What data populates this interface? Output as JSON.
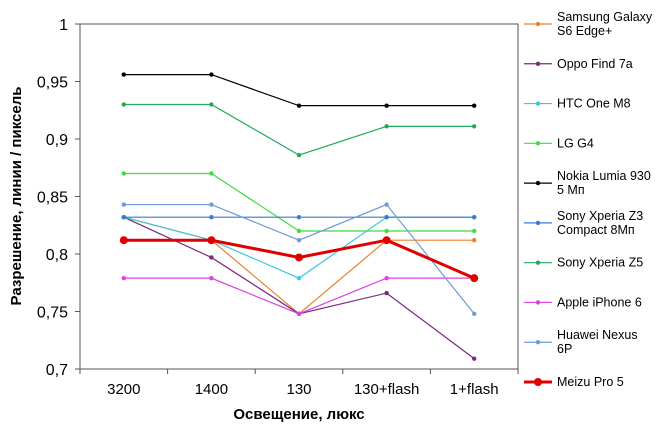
{
  "chart_data": {
    "type": "line",
    "xlabel": "Освещение,  люкс",
    "ylabel": "Разрешение,  линии / пиксель",
    "ylim": [
      0.7,
      1.0
    ],
    "yticks": [
      "0,7",
      "0,75",
      "0,8",
      "0,85",
      "0,9",
      "0,95",
      "1"
    ],
    "categories": [
      "3200",
      "1400",
      "130",
      "130+flash",
      "1+flash"
    ],
    "grid": false,
    "legend_position": "right",
    "series": [
      {
        "name": "Samsung Galaxy S6 Edge+",
        "legend_lines": [
          "Samsung Galaxy",
          "S6 Edge+"
        ],
        "color": "#e8822e",
        "values": [
          0.832,
          0.812,
          0.748,
          0.812,
          0.812
        ]
      },
      {
        "name": "Oppo Find 7a",
        "legend_lines": [
          "Oppo Find 7a"
        ],
        "color": "#7b2a80",
        "values": [
          0.832,
          0.797,
          0.748,
          0.766,
          0.709
        ]
      },
      {
        "name": "HTC One M8",
        "legend_lines": [
          "HTC One M8"
        ],
        "color": "#3cc7e0",
        "values": [
          0.832,
          0.812,
          0.779,
          0.832,
          0.832
        ]
      },
      {
        "name": "LG G4",
        "legend_lines": [
          "LG G4"
        ],
        "color": "#3fdc3f",
        "values": [
          0.87,
          0.87,
          0.82,
          0.82,
          0.82
        ]
      },
      {
        "name": "Nokia Lumia 930 5 Мп",
        "legend_lines": [
          "Nokia Lumia 930",
          "5 Мп"
        ],
        "color": "#000000",
        "values": [
          0.956,
          0.956,
          0.929,
          0.929,
          0.929
        ]
      },
      {
        "name": "Sony Xperia Z3 Compact 8Мп",
        "legend_lines": [
          "Sony Xperia Z3",
          "Compact 8Мп"
        ],
        "color": "#3b78d8",
        "values": [
          0.832,
          0.832,
          0.832,
          0.832,
          0.832
        ]
      },
      {
        "name": "Sony Xperia Z5",
        "legend_lines": [
          "Sony Xperia Z5"
        ],
        "color": "#22aa5a",
        "values": [
          0.93,
          0.93,
          0.886,
          0.911,
          0.911
        ]
      },
      {
        "name": "Apple iPhone 6",
        "legend_lines": [
          "Apple iPhone 6"
        ],
        "color": "#e040e0",
        "values": [
          0.779,
          0.779,
          0.748,
          0.779,
          0.779
        ]
      },
      {
        "name": "Huawei Nexus 6P",
        "legend_lines": [
          "Huawei Nexus",
          "6P"
        ],
        "color": "#6f9ad8",
        "values": [
          0.843,
          0.843,
          0.812,
          0.843,
          0.748
        ]
      },
      {
        "name": "Meizu Pro 5",
        "legend_lines": [
          "Meizu Pro 5"
        ],
        "color": "#e00000",
        "bold": true,
        "values": [
          0.812,
          0.812,
          0.797,
          0.812,
          0.779
        ]
      }
    ]
  }
}
